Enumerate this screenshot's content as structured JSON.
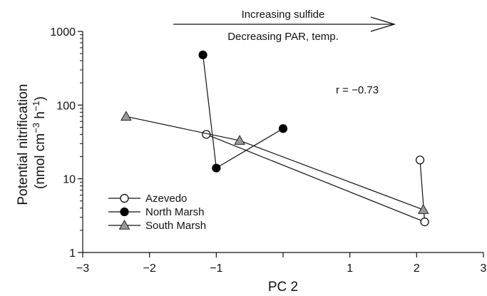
{
  "chart_data": {
    "type": "scatter",
    "xlabel": "PC 2",
    "ylabel_line1": "Potential nitrification",
    "ylabel_line2": "(nmol cm",
    "ylabel_sup1": "−3",
    "ylabel_mid": " h",
    "ylabel_sup2": "−1",
    "ylabel_end": ")",
    "xlim": [
      -3,
      3
    ],
    "ylim": [
      1,
      1000
    ],
    "yscale": "log",
    "x_ticks": [
      -3,
      -2,
      -1,
      0,
      1,
      2,
      3
    ],
    "x_tick_labels": [
      "−3",
      "−2",
      "−1",
      "",
      "1",
      "2",
      "3"
    ],
    "y_ticks": [
      1,
      10,
      100,
      1000
    ],
    "y_tick_labels": [
      "1",
      "10",
      "100",
      "1000"
    ],
    "arrow_text_top": "Increasing sulfide",
    "arrow_text_bottom": "Decreasing PAR, temp.",
    "correlation": "r = −0.73",
    "grid": false,
    "legend_position": "bottom-left",
    "series": [
      {
        "name": "Azevedo",
        "marker": "open-circle",
        "color": "#000000",
        "points": [
          [
            -1.15,
            40
          ],
          [
            2.12,
            2.6
          ],
          [
            2.05,
            18
          ]
        ]
      },
      {
        "name": "North Marsh",
        "marker": "filled-circle",
        "color": "#000000",
        "points": [
          [
            -1.2,
            480
          ],
          [
            -1.0,
            14
          ],
          [
            0.0,
            48
          ]
        ]
      },
      {
        "name": "South Marsh",
        "marker": "triangle",
        "color": "#999999",
        "points": [
          [
            -2.35,
            70
          ],
          [
            -0.65,
            33
          ],
          [
            2.1,
            3.8
          ]
        ]
      }
    ]
  }
}
